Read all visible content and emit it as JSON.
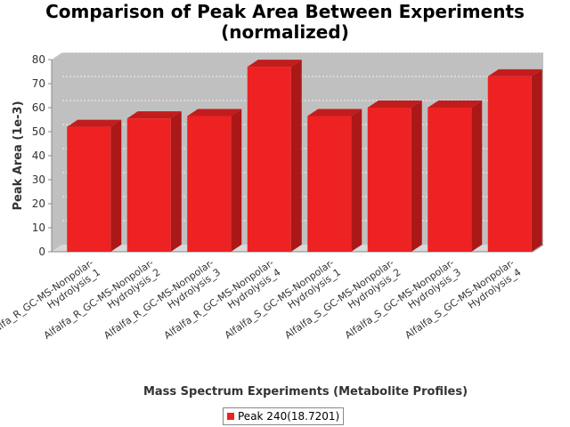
{
  "chart_data": {
    "type": "bar",
    "title_lines": [
      "Comparison of Peak Area Between Experiments",
      "(normalized)"
    ],
    "xlabel": "Mass Spectrum Experiments (Metabolite Profiles)",
    "ylabel": "Peak Area (1e-3)",
    "ylim": [
      0,
      80
    ],
    "yticks": [
      0,
      10,
      20,
      30,
      40,
      50,
      60,
      70,
      80
    ],
    "categories": [
      [
        "Alfalfa_R_GC-MS-Nonpolar-",
        "Hydrolysis_1"
      ],
      [
        "Alfalfa_R_GC-MS-Nonpolar-",
        "Hydrolysis_2"
      ],
      [
        "Alfalfa_R_GC-MS-Nonpolar-",
        "Hydrolysis_3"
      ],
      [
        "Alfalfa_R_GC-MS-Nonpolar-",
        "Hydrolysis_4"
      ],
      [
        "Alfalfa_S_GC-MS-Nonpolar-",
        "Hydrolysis_1"
      ],
      [
        "Alfalfa_S_GC-MS-Nonpolar-",
        "Hydrolysis_2"
      ],
      [
        "Alfalfa_S_GC-MS-Nonpolar-",
        "Hydrolysis_3"
      ],
      [
        "Alfalfa_S_GC-MS-Nonpolar-",
        "Hydrolysis_4"
      ]
    ],
    "series": [
      {
        "name": "Peak 240(18.7201)",
        "color": "#ee2222",
        "values": [
          52,
          55.5,
          56.5,
          77,
          56.5,
          60,
          60,
          73
        ]
      }
    ],
    "grid": true,
    "legend_position": "bottom",
    "style": "3d-bar"
  }
}
